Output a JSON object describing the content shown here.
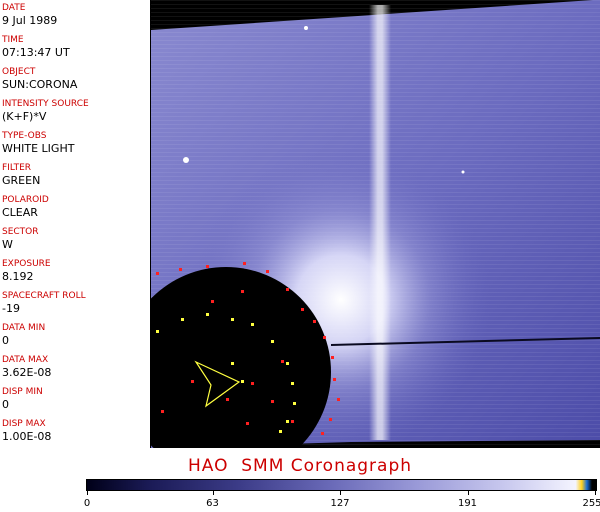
{
  "metadata": [
    {
      "label": "DATE",
      "value": "9 Jul 1989"
    },
    {
      "label": "TIME",
      "value": "07:13:47 UT"
    },
    {
      "label": "OBJECT",
      "value": "SUN:CORONA"
    },
    {
      "label": "INTENSITY SOURCE",
      "value": "(K+F)*V"
    },
    {
      "label": "TYPE-OBS",
      "value": "WHITE LIGHT"
    },
    {
      "label": "FILTER",
      "value": "GREEN"
    },
    {
      "label": "POLAROID",
      "value": "CLEAR"
    },
    {
      "label": "SECTOR",
      "value": "W"
    },
    {
      "label": "EXPOSURE",
      "value": "8.192"
    },
    {
      "label": "SPACECRAFT ROLL",
      "value": "-19"
    },
    {
      "label": "DATA MIN",
      "value": "0"
    },
    {
      "label": "DATA MAX",
      "value": "3.62E-08"
    },
    {
      "label": "DISP MIN",
      "value": "0"
    },
    {
      "label": "DISP MAX",
      "value": "1.00E-08"
    }
  ],
  "footer": {
    "title": "HAO  SMM Coronagraph"
  },
  "colorbar": {
    "ticks": [
      "0",
      "63",
      "127",
      "191",
      "255"
    ],
    "tick_values": [
      0,
      63,
      127,
      191,
      255
    ],
    "max": 255
  },
  "colors": {
    "label": "#cc0000",
    "corona": "#4a4aa0",
    "occulter": "#000000",
    "marker_red": "#ff2020",
    "marker_yellow": "#ffff40"
  }
}
